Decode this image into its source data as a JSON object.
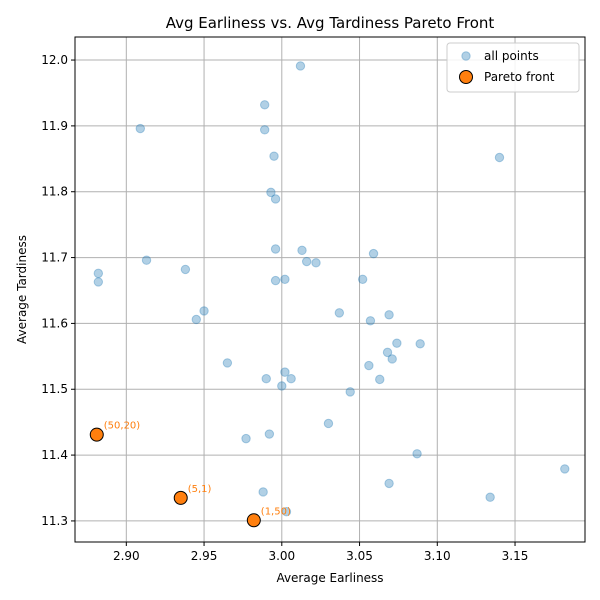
{
  "chart_data": {
    "type": "scatter",
    "title": "Avg Earliness vs. Avg Tardiness Pareto Front",
    "xlabel": "Average Earliness",
    "ylabel": "Average Tardiness",
    "xlim": [
      2.867,
      3.195
    ],
    "ylim": [
      11.268,
      12.035
    ],
    "xticks": [
      "2.90",
      "2.95",
      "3.00",
      "3.05",
      "3.10",
      "3.15"
    ],
    "yticks": [
      "11.3",
      "11.4",
      "11.5",
      "11.6",
      "11.7",
      "11.8",
      "11.9",
      "12.0"
    ],
    "grid": true,
    "legend_position": "top-right",
    "series": [
      {
        "name": "all points",
        "color": "#1f77b4",
        "points": [
          [
            3.012,
            11.991
          ],
          [
            2.989,
            11.932
          ],
          [
            2.909,
            11.896
          ],
          [
            2.989,
            11.894
          ],
          [
            3.14,
            11.852
          ],
          [
            2.995,
            11.854
          ],
          [
            2.993,
            11.799
          ],
          [
            2.996,
            11.789
          ],
          [
            2.996,
            11.713
          ],
          [
            3.013,
            11.711
          ],
          [
            3.059,
            11.706
          ],
          [
            2.913,
            11.696
          ],
          [
            3.016,
            11.694
          ],
          [
            3.022,
            11.692
          ],
          [
            2.938,
            11.682
          ],
          [
            2.882,
            11.676
          ],
          [
            2.882,
            11.663
          ],
          [
            2.996,
            11.665
          ],
          [
            3.002,
            11.667
          ],
          [
            3.052,
            11.667
          ],
          [
            2.95,
            11.619
          ],
          [
            3.037,
            11.616
          ],
          [
            3.069,
            11.613
          ],
          [
            2.945,
            11.606
          ],
          [
            3.057,
            11.604
          ],
          [
            3.074,
            11.57
          ],
          [
            3.089,
            11.569
          ],
          [
            3.068,
            11.556
          ],
          [
            3.071,
            11.546
          ],
          [
            2.965,
            11.54
          ],
          [
            3.056,
            11.536
          ],
          [
            3.002,
            11.526
          ],
          [
            2.99,
            11.516
          ],
          [
            3.006,
            11.516
          ],
          [
            3.063,
            11.515
          ],
          [
            3.0,
            11.505
          ],
          [
            3.044,
            11.496
          ],
          [
            3.03,
            11.448
          ],
          [
            2.992,
            11.432
          ],
          [
            2.977,
            11.425
          ],
          [
            3.087,
            11.402
          ],
          [
            3.182,
            11.379
          ],
          [
            3.069,
            11.357
          ],
          [
            2.988,
            11.344
          ],
          [
            3.134,
            11.336
          ],
          [
            3.003,
            11.314
          ]
        ]
      },
      {
        "name": "Pareto front",
        "color": "#ff7f0e",
        "points": [
          [
            2.881,
            11.431
          ],
          [
            2.935,
            11.335
          ],
          [
            2.982,
            11.301
          ]
        ],
        "labels": [
          "(50,20)",
          "(5,1)",
          "(1,50)"
        ]
      }
    ]
  }
}
